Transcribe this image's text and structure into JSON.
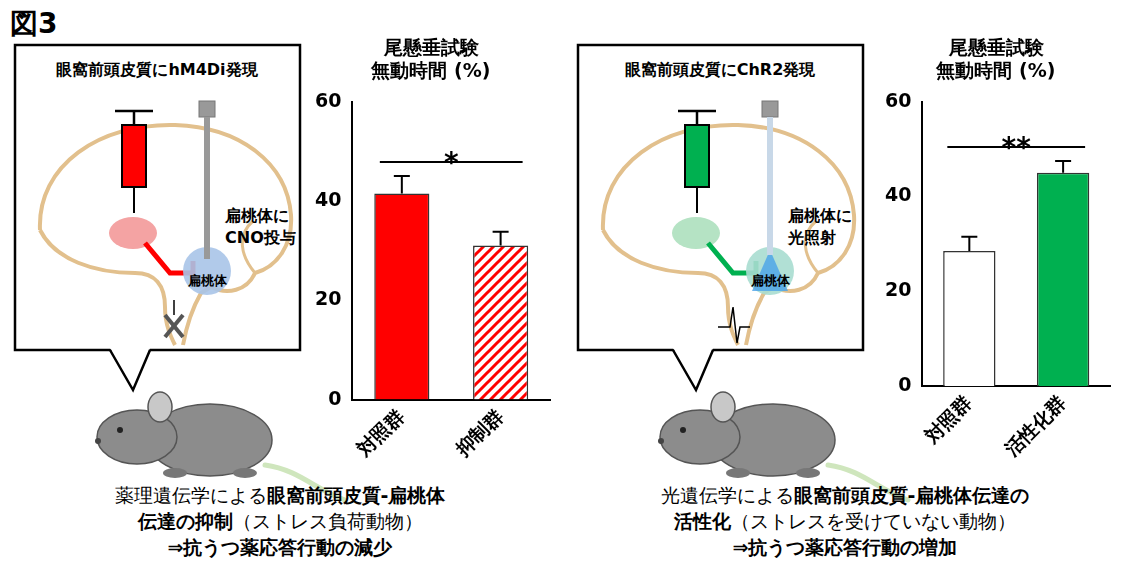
{
  "figure_label": "図3",
  "chart_data": [
    {
      "type": "bar",
      "title": [
        "尾懸垂試験",
        "無動時間 (%)"
      ],
      "categories": [
        "対照群",
        "抑制群"
      ],
      "values": [
        41.5,
        31
      ],
      "errors": [
        3.5,
        2.8
      ],
      "colors": [
        "#ff0000",
        "#ff0000"
      ],
      "ylim": [
        0,
        60
      ],
      "yticks": [
        0,
        20,
        40,
        60
      ],
      "grid": false,
      "annotations": [
        {
          "text": "*",
          "between": [
            "対照群",
            "抑制群"
          ]
        }
      ]
    },
    {
      "type": "bar",
      "title": [
        "尾懸垂試験",
        "無動時間 (%)"
      ],
      "categories": [
        "対照群",
        "活性化群"
      ],
      "values": [
        28.5,
        45
      ],
      "errors": [
        3,
        2.5
      ],
      "colors": [
        "#ffffff",
        "#00b050"
      ],
      "ylim": [
        0,
        60
      ],
      "yticks": [
        0,
        20,
        40,
        60
      ],
      "grid": false,
      "annotations": [
        {
          "text": "**",
          "between": [
            "対照群",
            "活性化群"
          ]
        }
      ]
    }
  ],
  "diagrams": [
    {
      "heading": "眼窩前頭皮質にhM4Di発現",
      "region_label": "扁桃体",
      "note": [
        "扁桃体に",
        "CNO投与"
      ],
      "color": "#ff0000"
    },
    {
      "heading": "眼窩前頭皮質にChR2発現",
      "region_label": "扁桃体",
      "note": [
        "扁桃体に",
        "光照射"
      ],
      "color": "#00b050"
    }
  ],
  "captions": [
    [
      [
        {
          "text": "薬理遺伝学による"
        },
        {
          "text": "眼窩前頭皮質-扁桃体",
          "bold": true
        }
      ],
      [
        {
          "text": "伝達の抑制",
          "bold": true
        },
        {
          "text": "（ストレス負荷動物）"
        }
      ],
      [
        {
          "text": "⇒抗うつ薬応答行動の減少",
          "bold": true
        }
      ]
    ],
    [
      [
        {
          "text": "光遺伝学による"
        },
        {
          "text": "眼窩前頭皮質-扁桃体伝達の",
          "bold": true
        }
      ],
      [
        {
          "text": "活性化",
          "bold": true
        },
        {
          "text": "（ストレスを受けていない動物）"
        }
      ],
      [
        {
          "text": "⇒抗うつ薬応答行動の増加",
          "bold": true
        }
      ]
    ]
  ]
}
